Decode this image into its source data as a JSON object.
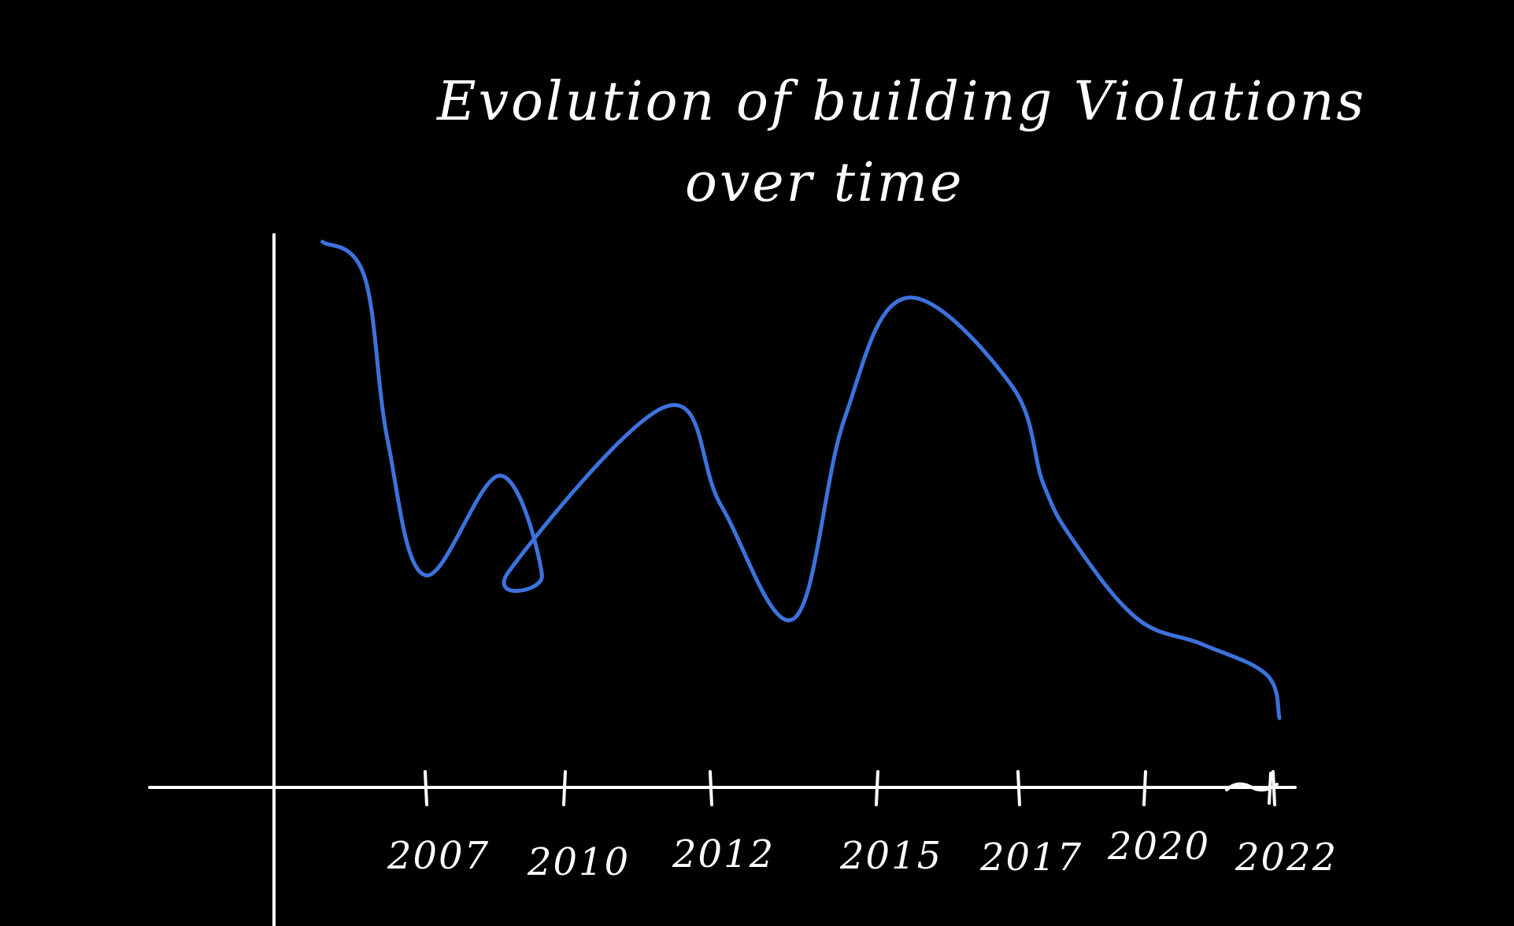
{
  "colors": {
    "background": "#000000",
    "ink": "#ffffff",
    "series": "#3d72dc"
  },
  "chart_data": {
    "type": "line",
    "title_line1": "Evolution of building Violations",
    "title_line2": "over time",
    "x_tick_labels": [
      "2007",
      "2010",
      "2012",
      "2015",
      "2017",
      "2020",
      "2022"
    ],
    "xlabel": "",
    "ylabel": "",
    "grid": false,
    "y_axis_ticks": "none",
    "series": [
      {
        "x": [
          2004.8,
          2005.7,
          2006.2,
          2007.0,
          2008.6,
          2009.5,
          2008.8,
          2011.4,
          2012.2,
          2013.5,
          2014.4,
          2015.4,
          2016.9,
          2017.6,
          2018.3,
          2019.8,
          2020.9,
          2021.9,
          2022.1
        ],
        "y": [
          12.6,
          11.8,
          8.0,
          4.9,
          7.2,
          4.9,
          5.0,
          8.8,
          6.5,
          3.9,
          8.5,
          11.3,
          9.3,
          7.0,
          5.7,
          3.9,
          3.3,
          2.6,
          1.6
        ]
      }
    ]
  }
}
